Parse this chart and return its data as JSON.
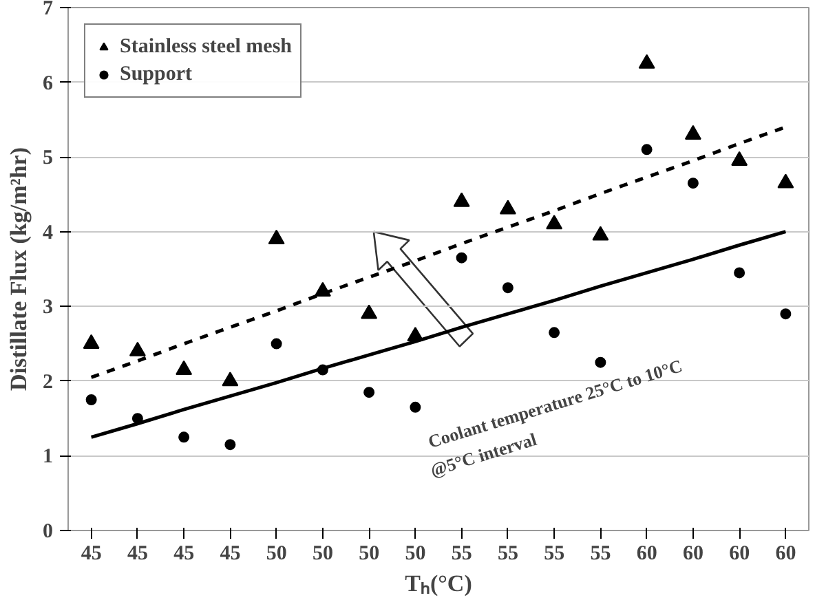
{
  "chart_data": {
    "type": "scatter",
    "xlabel": "Tₕ(°C)",
    "ylabel": "Distillate Flux (kg/m²hr)",
    "categories": [
      "45",
      "45",
      "45",
      "45",
      "50",
      "50",
      "50",
      "50",
      "55",
      "55",
      "55",
      "55",
      "60",
      "60",
      "60",
      "60"
    ],
    "ylim": [
      0,
      7
    ],
    "yticks": [
      0,
      1,
      2,
      3,
      4,
      5,
      6,
      7
    ],
    "grid": "y",
    "legend": "top left",
    "series": [
      {
        "name": "Stainless steel mesh",
        "color": "#000000",
        "marker": "triangle",
        "values": [
          2.5,
          2.4,
          2.15,
          2.0,
          3.9,
          3.2,
          2.9,
          2.6,
          4.4,
          4.3,
          4.1,
          3.95,
          6.25,
          5.3,
          4.95,
          4.65
        ]
      },
      {
        "name": "Support",
        "color": "#000000",
        "marker": "circle",
        "values": [
          1.75,
          1.5,
          1.25,
          1.15,
          2.5,
          2.15,
          1.85,
          1.65,
          3.65,
          3.25,
          2.65,
          2.25,
          5.1,
          4.65,
          3.45,
          2.9
        ]
      },
      {
        "type": "line",
        "color": "#000000",
        "line_style": "dashed",
        "values": [
          2.05,
          2.27,
          2.5,
          2.72,
          2.94,
          3.17,
          3.39,
          3.61,
          3.84,
          4.06,
          4.28,
          4.51,
          4.73,
          4.95,
          5.18,
          5.4
        ]
      },
      {
        "type": "line",
        "color": "#000000",
        "line_style": "solid",
        "values": [
          1.25,
          1.43,
          1.62,
          1.8,
          1.98,
          2.17,
          2.35,
          2.53,
          2.72,
          2.9,
          3.08,
          3.27,
          3.45,
          3.63,
          3.82,
          4.0
        ]
      }
    ],
    "annotations": [
      "Coolant temperature 25°C to 10°C\n@5°C interval"
    ]
  }
}
